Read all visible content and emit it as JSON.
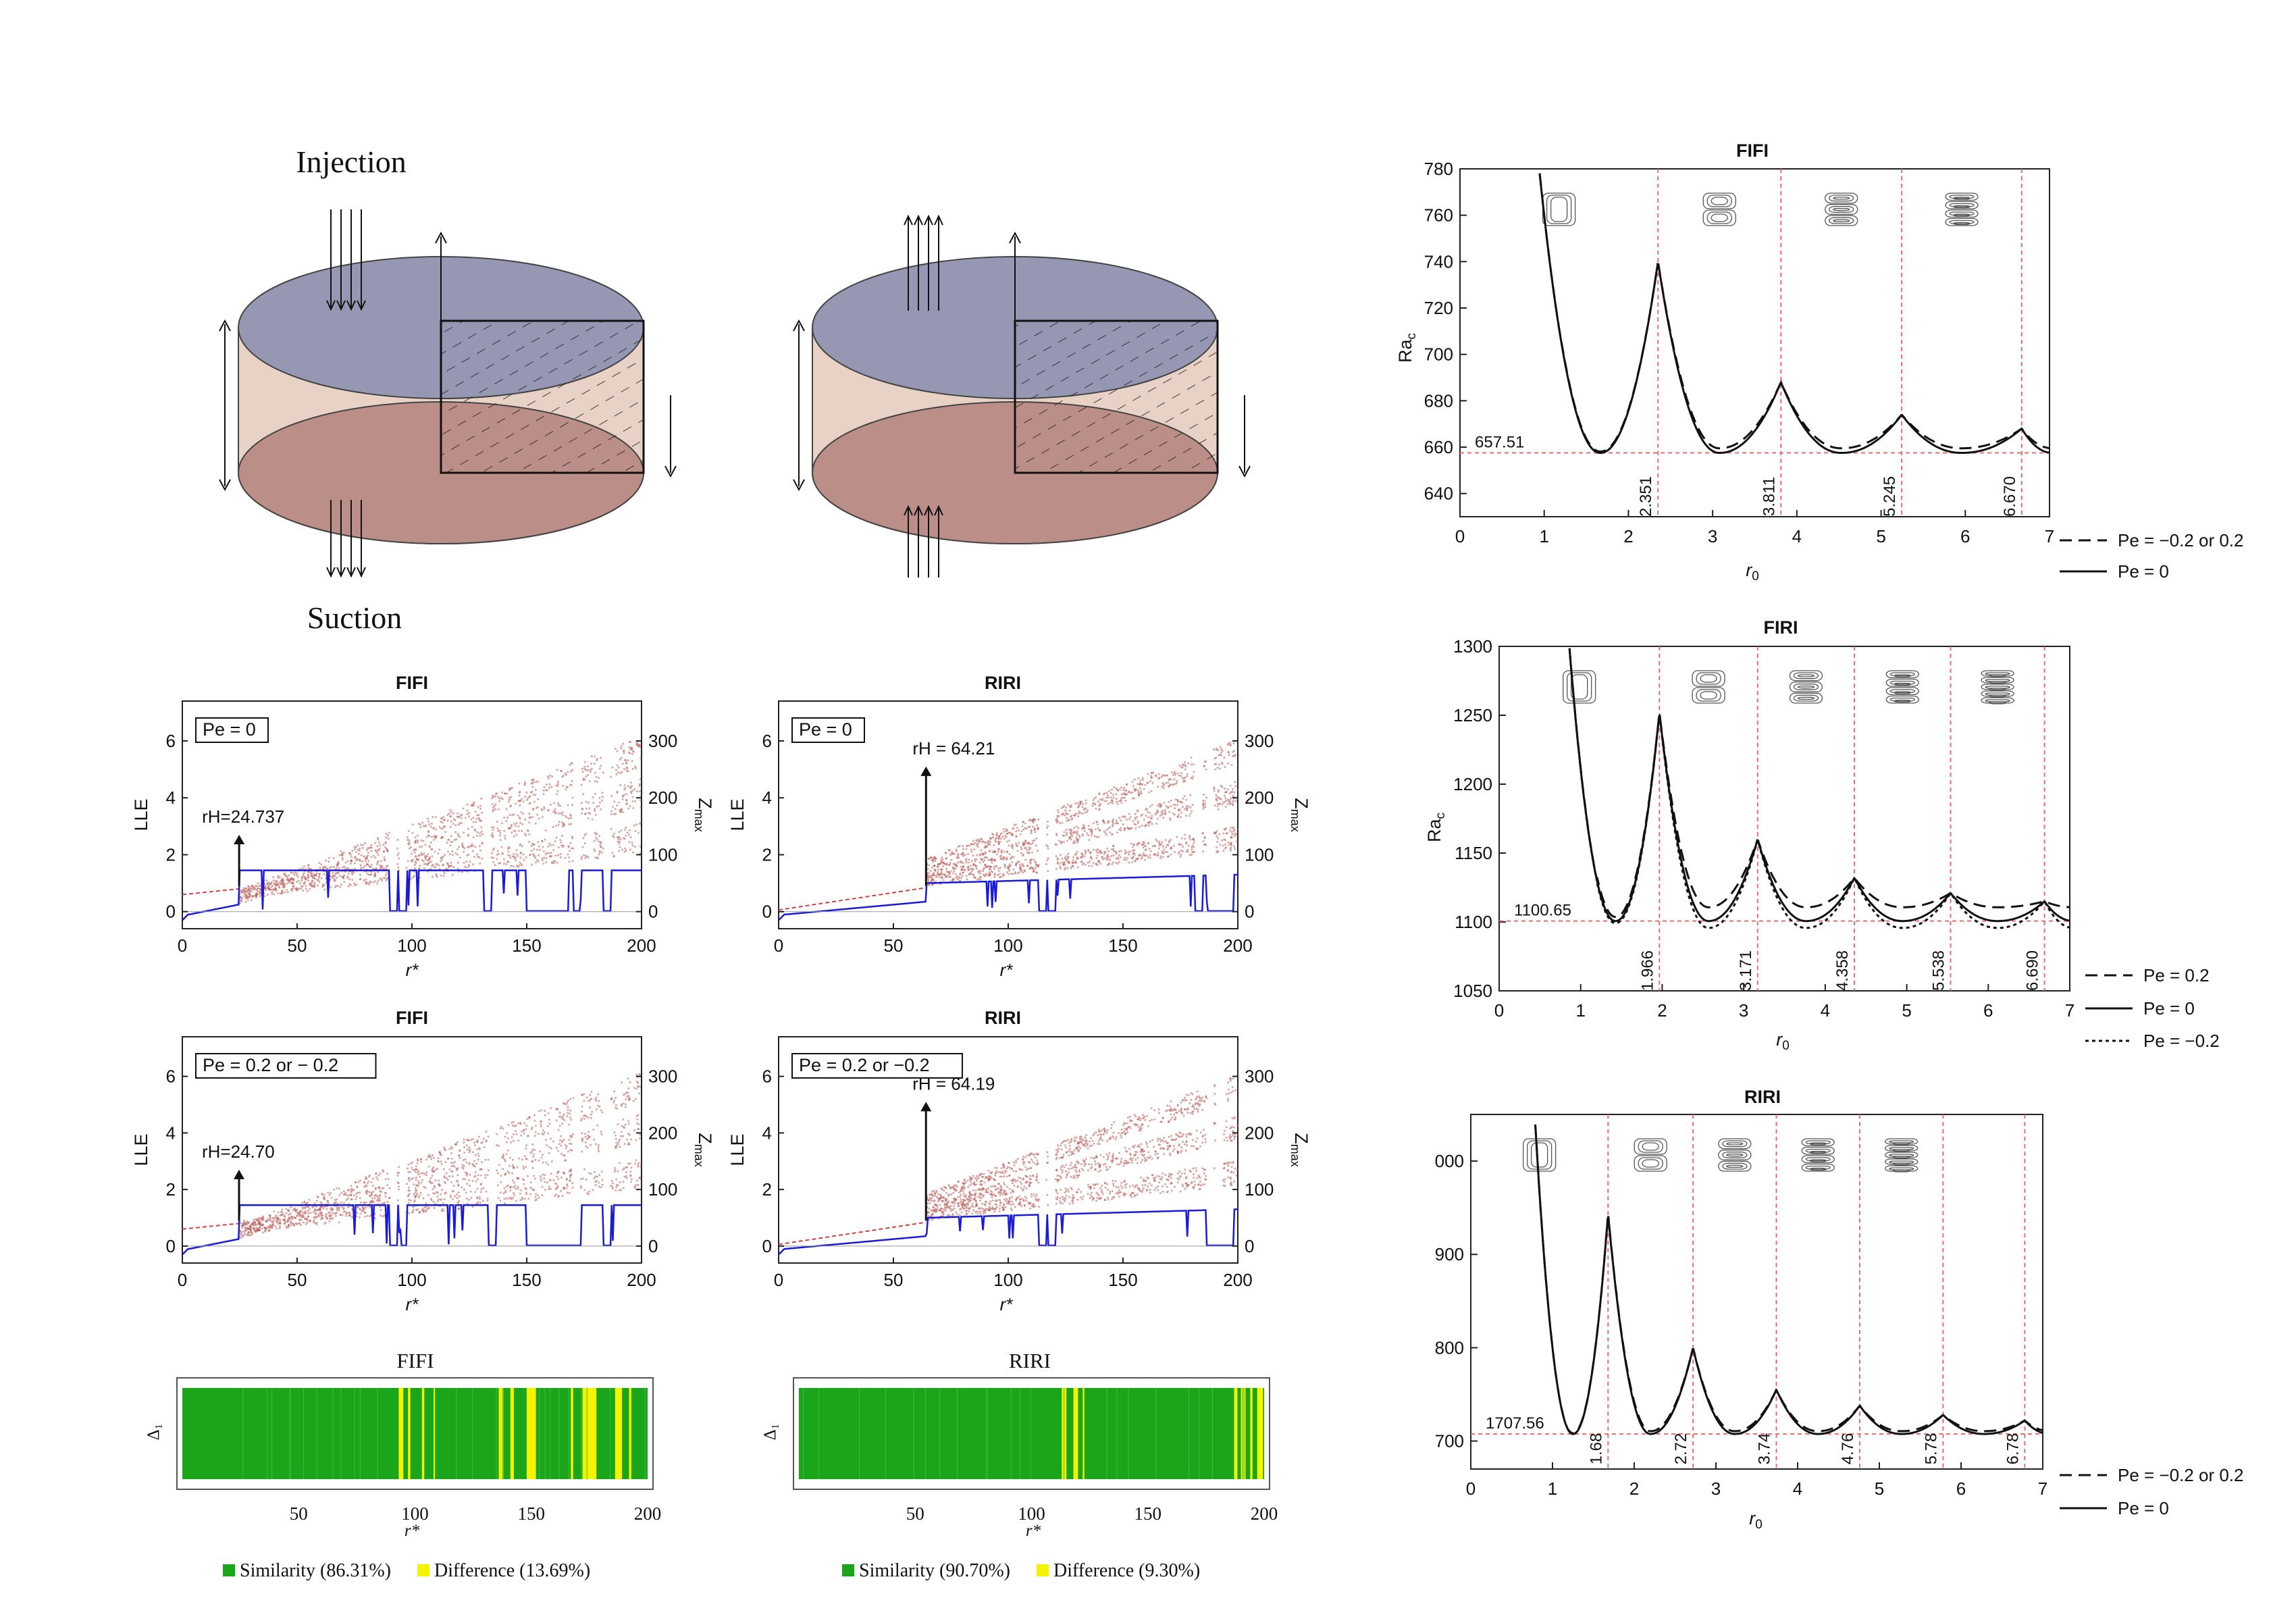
{
  "figure": {
    "injection_label": "Injection",
    "suction_label": "Suction"
  },
  "colors": {
    "top_face": "#9597b3",
    "bottom_face": "#bb8f88",
    "side": "#e8d2c6",
    "red_cloud": "#b85c57",
    "red_line": "#d04040",
    "blue_line": "#1a1ad8",
    "green": "#1aa51a",
    "yellow": "#f4f400",
    "dash_red": "#e07070"
  },
  "chart_data": [
    {
      "id": "rac-fifi",
      "type": "line",
      "title": "FIFI",
      "xlabel": "r0",
      "ylabel": "Rac",
      "xlim": [
        0,
        7
      ],
      "ylim": [
        630,
        780
      ],
      "xticks": [
        "0",
        "1",
        "2",
        "3",
        "4",
        "5",
        "6",
        "7"
      ],
      "yticks": [
        "640",
        "660",
        "680",
        "700",
        "720",
        "740",
        "760",
        "780"
      ],
      "min_label": "657.51",
      "min_value": 657.51,
      "transitions": [
        2.351,
        3.811,
        5.245,
        6.67
      ],
      "transition_labels": [
        "2.351",
        "3.811",
        "5.245",
        "6.670"
      ],
      "peaks": [
        740,
        688,
        674,
        668
      ],
      "legend": [
        "Pe = −0.2 or 0.2",
        "Pe = 0"
      ],
      "series": [
        {
          "name": "Pe = −0.2 or 0.2",
          "style": "dash",
          "offset": 2
        },
        {
          "name": "Pe = 0",
          "style": "solid",
          "offset": 0
        }
      ]
    },
    {
      "id": "rac-firi",
      "type": "line",
      "title": "FIRI",
      "xlabel": "r0",
      "ylabel": "Rac",
      "xlim": [
        0,
        7
      ],
      "ylim": [
        1050,
        1300
      ],
      "xticks": [
        "0",
        "1",
        "2",
        "3",
        "4",
        "5",
        "6",
        "7"
      ],
      "yticks": [
        "1050",
        "1100",
        "1150",
        "1200",
        "1250",
        "1300"
      ],
      "min_label": "1100.65",
      "min_value": 1100.65,
      "transitions": [
        1.966,
        3.171,
        4.358,
        5.538,
        6.69
      ],
      "transition_labels": [
        "1.966",
        "3.171",
        "4.358",
        "5.538",
        "6.690"
      ],
      "peaks": [
        1252,
        1160,
        1132,
        1121,
        1115
      ],
      "legend": [
        "Pe = 0.2",
        "Pe = 0",
        "Pe = −0.2"
      ],
      "series": [
        {
          "name": "Pe = 0.2",
          "style": "dash",
          "offset": 10
        },
        {
          "name": "Pe = 0",
          "style": "solid",
          "offset": 0
        },
        {
          "name": "Pe = −0.2",
          "style": "dot",
          "offset": -5
        }
      ]
    },
    {
      "id": "rac-riri",
      "type": "line",
      "title": "RIRI",
      "xlabel": "r0",
      "ylabel": "Rac",
      "xlim": [
        0,
        7
      ],
      "ylim": [
        1670,
        2050
      ],
      "xticks": [
        "0",
        "1",
        "2",
        "3",
        "4",
        "5",
        "6",
        "7"
      ],
      "yticks": [
        "700",
        "800",
        "900",
        "000"
      ],
      "ytick_values": [
        1700,
        1800,
        1900,
        2000
      ],
      "min_label": "1707.56",
      "min_value": 1707.56,
      "transitions": [
        1.68,
        2.72,
        3.74,
        4.76,
        5.78,
        6.78
      ],
      "transition_labels": [
        "1.68",
        "2.72",
        "3.74",
        "4.76",
        "5.78",
        "6.78"
      ],
      "peaks": [
        1944,
        1800,
        1755,
        1738,
        1728,
        1722
      ],
      "legend": [
        "Pe = −0.2 or 0.2",
        "Pe = 0"
      ],
      "series": [
        {
          "name": "Pe = −0.2 or 0.2",
          "style": "dash",
          "offset": 3
        },
        {
          "name": "Pe = 0",
          "style": "solid",
          "offset": 0
        }
      ]
    },
    {
      "id": "bif-fifi-0",
      "type": "scatter",
      "title": "FIFI",
      "pe_label": "Pe = 0",
      "xlabel": "r*",
      "ylabel": "LLE",
      "y2label": "Zmax",
      "xlim": [
        0,
        200
      ],
      "ylim": [
        -0.6,
        7.4
      ],
      "xticks": [
        "0",
        "50",
        "100",
        "150",
        "200"
      ],
      "yticks": [
        "0",
        "2",
        "4",
        "6"
      ],
      "y2ticks": [
        "0",
        "100",
        "200",
        "300"
      ],
      "rH": 24.737,
      "rH_label": "rH=24.737",
      "windows": [
        92,
        96,
        133,
        172,
        185
      ],
      "lle_level": 1.45,
      "lle_low_from": 150,
      "lle_low_to": 168
    },
    {
      "id": "bif-riri-0",
      "type": "scatter",
      "title": "RIRI",
      "pe_label": "Pe = 0",
      "xlabel": "r*",
      "ylabel": "LLE",
      "y2label": "Zmax",
      "xlim": [
        0,
        200
      ],
      "ylim": [
        -0.6,
        7.4
      ],
      "xticks": [
        "0",
        "50",
        "100",
        "150",
        "200"
      ],
      "yticks": [
        "0",
        "2",
        "4",
        "6"
      ],
      "y2ticks": [
        "0",
        "100",
        "200",
        "300"
      ],
      "rH": 64.21,
      "rH_label": "rH = 64.21",
      "windows": [
        115,
        119,
        183,
        188
      ],
      "lle_level": 1.0,
      "lle_low_from": 188,
      "lle_low_to": 198
    },
    {
      "id": "bif-fifi-02",
      "type": "scatter",
      "title": "FIFI",
      "pe_label": "Pe = 0.2 or − 0.2",
      "xlabel": "r*",
      "ylabel": "LLE",
      "y2label": "Zmax",
      "xlim": [
        0,
        200
      ],
      "ylim": [
        -0.6,
        7.4
      ],
      "xticks": [
        "0",
        "50",
        "100",
        "150",
        "200"
      ],
      "yticks": [
        "0",
        "2",
        "4",
        "6"
      ],
      "y2ticks": [
        "0",
        "100",
        "200",
        "300"
      ],
      "rH": 24.7,
      "rH_label": "rH=24.70",
      "windows": [
        92,
        96,
        135,
        172,
        185
      ],
      "lle_level": 1.45,
      "lle_low_from": 150,
      "lle_low_to": 172
    },
    {
      "id": "bif-riri-02",
      "type": "scatter",
      "title": "RIRI",
      "pe_label": "Pe = 0.2 or −0.2",
      "xlabel": "r*",
      "ylabel": "LLE",
      "y2label": "Zmax",
      "xlim": [
        0,
        200
      ],
      "ylim": [
        -0.6,
        7.4
      ],
      "xticks": [
        "0",
        "50",
        "100",
        "150",
        "200"
      ],
      "yticks": [
        "0",
        "2",
        "4",
        "6"
      ],
      "y2ticks": [
        "0",
        "100",
        "200",
        "300"
      ],
      "rH": 64.19,
      "rH_label": "rH = 64.19",
      "windows": [
        115,
        119,
        188,
        192
      ],
      "lle_level": 1.0,
      "lle_low_from": 190,
      "lle_low_to": 198
    },
    {
      "id": "sim-fifi",
      "type": "heatmap",
      "title": "FIFI",
      "xlabel": "r*",
      "ylabel": "Δ₁",
      "xlim": [
        0,
        200
      ],
      "xticks": [
        "50",
        "100",
        "150",
        "200"
      ],
      "legend_similarity": "Similarity (86.31%)",
      "legend_difference": "Difference (13.69%)",
      "difference_intervals": [
        [
          93,
          95
        ],
        [
          97,
          98
        ],
        [
          103,
          104
        ],
        [
          108,
          108.6
        ],
        [
          136,
          138
        ],
        [
          141,
          142.5
        ],
        [
          148,
          152
        ],
        [
          167,
          168
        ],
        [
          172,
          178
        ],
        [
          186,
          189
        ],
        [
          192,
          193
        ]
      ]
    },
    {
      "id": "sim-riri",
      "type": "heatmap",
      "title": "RIRI",
      "xlabel": "r*",
      "ylabel": "Δ₁",
      "xlim": [
        0,
        200
      ],
      "xticks": [
        "50",
        "100",
        "150",
        "200"
      ],
      "legend_similarity": "Similarity (90.70%)",
      "legend_difference": "Difference (9.30%)",
      "difference_intervals": [
        [
          113,
          115
        ],
        [
          118,
          120
        ],
        [
          122,
          122.7
        ],
        [
          187,
          188.5
        ],
        [
          190,
          192
        ],
        [
          194,
          195
        ],
        [
          197,
          199.5
        ]
      ]
    }
  ]
}
